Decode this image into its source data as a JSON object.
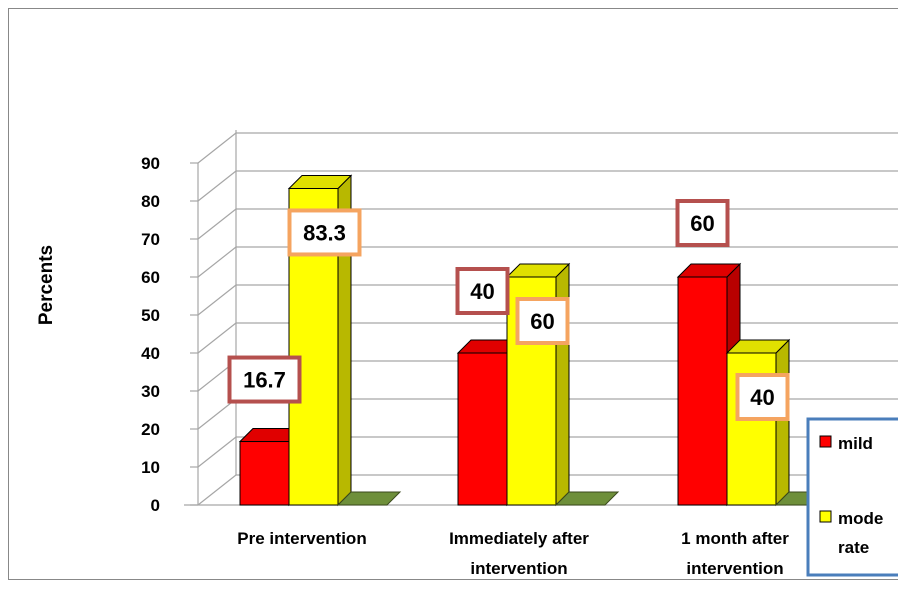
{
  "chart_data": {
    "type": "bar",
    "style": "3d-clustered-column",
    "ylabel": "Percents",
    "ylim": [
      0,
      90
    ],
    "y_ticks": [
      0,
      10,
      20,
      30,
      40,
      50,
      60,
      70,
      80,
      90
    ],
    "categories": [
      [
        "Pre intervention"
      ],
      [
        "Immediately after",
        "intervention"
      ],
      [
        "1 month  after",
        "intervention"
      ]
    ],
    "series": [
      {
        "name": "mild",
        "values": [
          16.7,
          40,
          60
        ],
        "labels": [
          "16.7",
          "40",
          "60"
        ],
        "color": "#ff0000"
      },
      {
        "name": "moderate",
        "legend_lines": [
          "mode",
          "rate"
        ],
        "values": [
          83.3,
          60,
          40
        ],
        "labels": [
          "83.3",
          "60",
          "40"
        ],
        "color": "#ffff00"
      }
    ],
    "grid": true,
    "legend_position": "right",
    "colors": {
      "mild_label_border": "#b5504e",
      "moderate_label_border": "#f5a460",
      "legend_border": "#4a7ebb",
      "floor_stub": "#6e8f3a"
    }
  }
}
